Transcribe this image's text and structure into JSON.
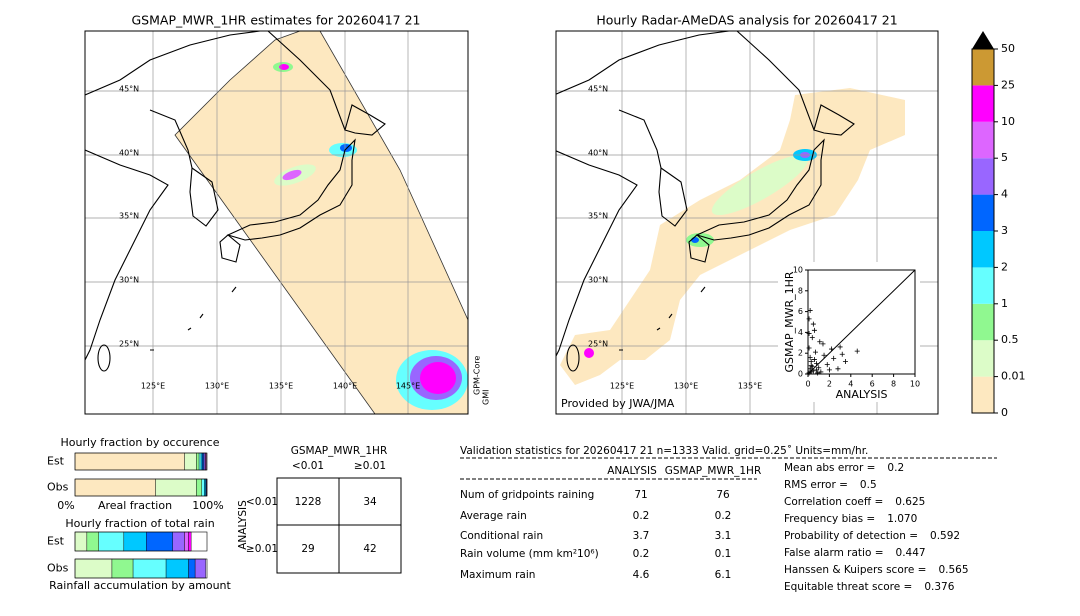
{
  "left_map": {
    "title": "GSMAP_MWR_1HR estimates for 20260417 21",
    "lat_labels": [
      "45°N",
      "40°N",
      "35°N",
      "30°N",
      "25°N"
    ],
    "lon_labels": [
      "125°E",
      "130°E",
      "135°E",
      "140°E",
      "145°E"
    ],
    "side_label": [
      "GPM-Core",
      "GMI"
    ]
  },
  "right_map": {
    "title": "Hourly Radar-AMeDAS analysis for 20260417 21",
    "lat_labels": [
      "45°N",
      "40°N",
      "35°N",
      "30°N",
      "25°N"
    ],
    "lon_labels": [
      "125°E",
      "130°E",
      "135°E"
    ],
    "credit": "Provided by JWA/JMA"
  },
  "scatter": {
    "xlabel": "ANALYSIS",
    "ylabel": "GSMAP_MWR_1HR",
    "xlim": [
      0,
      10
    ],
    "ylim": [
      0,
      10
    ],
    "xticks": [
      0,
      2,
      4,
      6,
      8,
      10
    ],
    "yticks": [
      0,
      2,
      4,
      6,
      8,
      10
    ],
    "x": [
      0.1,
      0.2,
      0.3,
      0.1,
      0.5,
      0.6,
      0.8,
      1.0,
      0.2,
      0.4,
      1.2,
      1.5,
      0.3,
      0.7,
      2.0,
      2.4,
      3.0,
      0.1,
      0.9,
      1.8,
      0.2,
      0.5,
      3.5,
      4.6,
      1.1,
      0.3,
      2.8,
      0.6,
      1.4,
      0.1,
      0.4,
      2.2,
      0.8,
      3.2
    ],
    "y": [
      0.1,
      0.5,
      1.2,
      2.5,
      0.3,
      4.2,
      1.0,
      0.6,
      6.1,
      3.5,
      0.2,
      1.8,
      0.8,
      2.1,
      0.4,
      1.5,
      2.6,
      3.9,
      0.1,
      0.9,
      1.6,
      4.8,
      1.2,
      2.2,
      3.1,
      0.2,
      0.5,
      1.4,
      2.9,
      5.3,
      0.7,
      2.4,
      0.4,
      1.9
    ]
  },
  "colorbar": {
    "levels": [
      0,
      0.01,
      0.5,
      1,
      2,
      3,
      4,
      5,
      10,
      25,
      50
    ],
    "colors": [
      "#fde8c0",
      "#dcfcc8",
      "#90f890",
      "#66ffff",
      "#00c8ff",
      "#0066ff",
      "#9966ff",
      "#dd66ff",
      "#ff00ff",
      "#cc9933"
    ],
    "extend_color": "#000000"
  },
  "occurrence": {
    "title": "Hourly fraction by occurence",
    "row_labels": [
      "Est",
      "Obs"
    ],
    "rows": [
      [
        0.83,
        0.09,
        0.02,
        0.015,
        0.01,
        0.01,
        0.01,
        0.005,
        0.005,
        0
      ],
      [
        0.61,
        0.31,
        0.04,
        0.02,
        0.01,
        0.005,
        0.005,
        0,
        0,
        0
      ]
    ],
    "axis_labels": [
      "0%",
      "Areal fraction",
      "100%"
    ]
  },
  "total_rain": {
    "title": "Hourly fraction of total rain",
    "row_labels": [
      "Est",
      "Obs"
    ],
    "rows": [
      [
        0,
        0.09,
        0.09,
        0.19,
        0.17,
        0.2,
        0.09,
        0.03,
        0.02,
        0
      ],
      [
        0,
        0.28,
        0.16,
        0.25,
        0.17,
        0.05,
        0.08,
        0,
        0,
        0
      ]
    ],
    "xlabel": "Rainfall accumulation by amount"
  },
  "contingency": {
    "title": "GSMAP_MWR_1HR",
    "col_labels": [
      "<0.01",
      "≥0.01"
    ],
    "row_title": "ANALYSIS",
    "row_labels": [
      "<0.01",
      "≥0.01"
    ],
    "cells": [
      [
        1228,
        34
      ],
      [
        29,
        42
      ]
    ]
  },
  "validation": {
    "header": "Validation statistics for 20260417 21  n=1333 Valid. grid=0.25˚ Units=mm/hr.",
    "columns": [
      "ANALYSIS",
      "GSMAP_MWR_1HR"
    ],
    "rows": [
      {
        "label": "Num of gridpoints raining",
        "values": [
          71,
          76
        ]
      },
      {
        "label": "Average rain",
        "values": [
          0.2,
          0.2
        ]
      },
      {
        "label": "Conditional rain",
        "values": [
          3.7,
          3.1
        ]
      },
      {
        "label": "Rain volume (mm km²10⁶)",
        "values": [
          0.2,
          0.1
        ]
      },
      {
        "label": "Maximum rain",
        "values": [
          4.6,
          6.1
        ]
      }
    ],
    "scores": [
      {
        "label": "Mean abs error =",
        "value": "0.2"
      },
      {
        "label": "RMS error =",
        "value": "0.5"
      },
      {
        "label": "Correlation coeff =",
        "value": "0.625"
      },
      {
        "label": "Frequency bias =",
        "value": "1.070"
      },
      {
        "label": "Probability of detection =",
        "value": "0.592"
      },
      {
        "label": "False alarm ratio =",
        "value": "0.447"
      },
      {
        "label": "Hanssen & Kuipers score =",
        "value": "0.565"
      },
      {
        "label": "Equitable threat score =",
        "value": "0.376"
      }
    ]
  }
}
